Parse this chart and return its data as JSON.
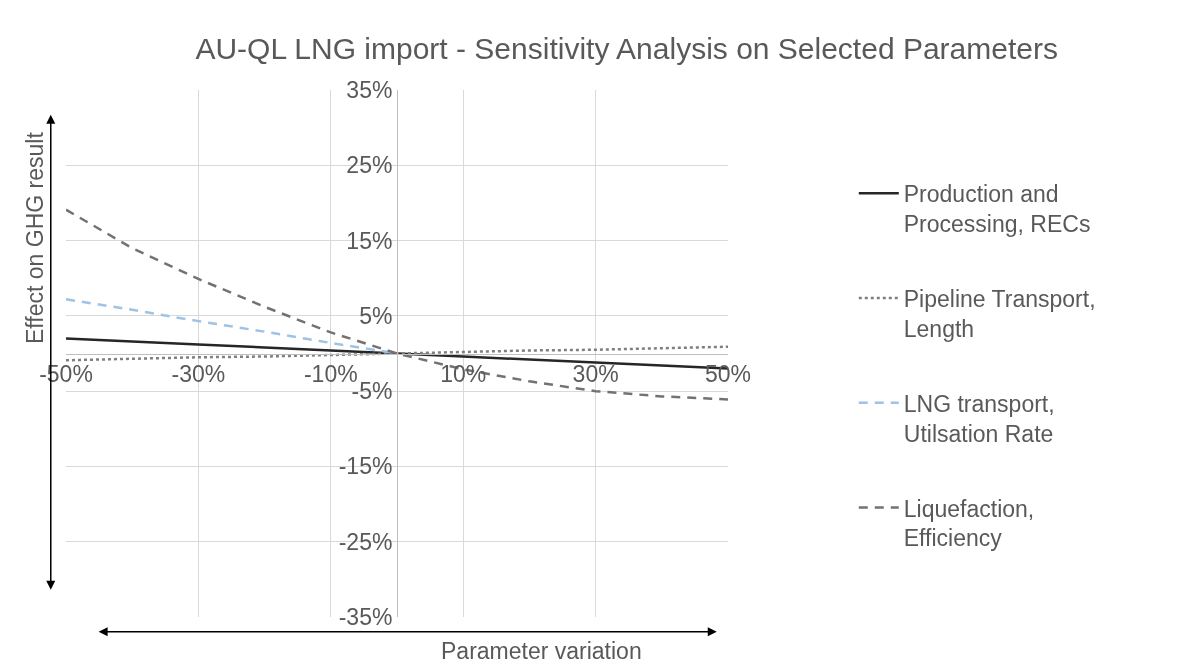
{
  "chart_data": {
    "type": "line",
    "title": "AU-QL LNG import - Sensitivity Analysis on Selected Parameters",
    "xlabel": "Parameter variation",
    "ylabel": "Effect on GHG result",
    "x": [
      -50,
      -40,
      -30,
      -20,
      -10,
      0,
      10,
      20,
      30,
      40,
      50
    ],
    "series": [
      {
        "name": "Production and Processing, RECs",
        "color": "#262626",
        "line_style": "solid",
        "values": [
          2.0,
          1.6,
          1.2,
          0.8,
          0.4,
          0,
          -0.4,
          -0.8,
          -1.2,
          -1.6,
          -2.0
        ]
      },
      {
        "name": "Pipeline Transport, Length",
        "color": "#7f7f7f",
        "line_style": "dotted",
        "values": [
          -0.9,
          -0.7,
          -0.5,
          -0.4,
          -0.2,
          0,
          0.2,
          0.4,
          0.5,
          0.7,
          0.9
        ]
      },
      {
        "name": "LNG transport, Utilsation Rate",
        "color": "#9dc3e6",
        "line_style": "dashed",
        "values": [
          7.2,
          5.8,
          4.3,
          2.9,
          1.4,
          0,
          null,
          null,
          null,
          null,
          null
        ]
      },
      {
        "name": "Liquefaction, Efficiency",
        "color": "#767171",
        "line_style": "dashed",
        "values": [
          19.1,
          14.0,
          9.9,
          6.2,
          2.8,
          0,
          -2.1,
          -3.7,
          -5.0,
          -5.7,
          -6.1
        ]
      }
    ],
    "xlim": [
      -50,
      50
    ],
    "xticks": [
      {
        "value": -50,
        "label": "-50%"
      },
      {
        "value": -30,
        "label": "-30%"
      },
      {
        "value": -10,
        "label": "-10%"
      },
      {
        "value": 10,
        "label": "10%"
      },
      {
        "value": 30,
        "label": "30%"
      },
      {
        "value": 50,
        "label": "50%"
      }
    ],
    "ylim": [
      -35,
      35
    ],
    "yticks": [
      {
        "value": 35,
        "label": "35%"
      },
      {
        "value": 25,
        "label": "25%"
      },
      {
        "value": 15,
        "label": "15%"
      },
      {
        "value": 5,
        "label": "5%"
      },
      {
        "value": -5,
        "label": "-5%"
      },
      {
        "value": -15,
        "label": "-15%"
      },
      {
        "value": -25,
        "label": "-25%"
      },
      {
        "value": -35,
        "label": "-35%"
      }
    ],
    "grid": true,
    "legend": "right"
  }
}
